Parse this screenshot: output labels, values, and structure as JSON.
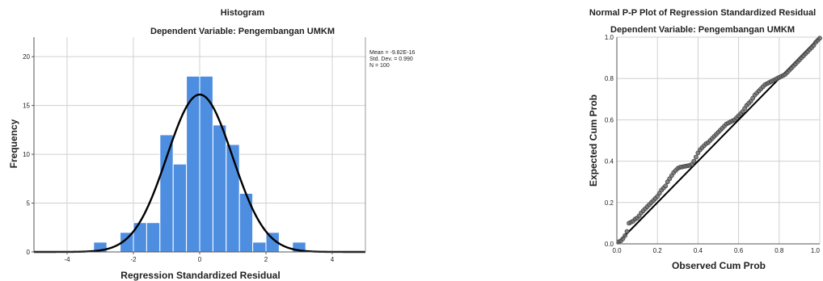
{
  "chart_data": [
    {
      "type": "histogram",
      "title": "Histogram",
      "subtitle": "Dependent Variable: Pengembangan UMKM",
      "xlabel": "Regression Standardized Residual",
      "ylabel": "Frequency",
      "xlim": [
        -5,
        5
      ],
      "ylim": [
        0,
        22
      ],
      "xticks": [
        -4,
        -2,
        0,
        2,
        4
      ],
      "yticks": [
        0,
        5,
        10,
        15,
        20
      ],
      "bin_width": 0.4,
      "bins": [
        {
          "start": -3.2,
          "count": 1
        },
        {
          "start": -2.4,
          "count": 2
        },
        {
          "start": -2.0,
          "count": 3
        },
        {
          "start": -1.6,
          "count": 3
        },
        {
          "start": -1.2,
          "count": 12
        },
        {
          "start": -0.8,
          "count": 9
        },
        {
          "start": -0.4,
          "count": 18
        },
        {
          "start": 0.0,
          "count": 18
        },
        {
          "start": 0.4,
          "count": 13
        },
        {
          "start": 0.8,
          "count": 11
        },
        {
          "start": 1.2,
          "count": 6
        },
        {
          "start": 1.6,
          "count": 1
        },
        {
          "start": 2.0,
          "count": 2
        },
        {
          "start": 2.8,
          "count": 1
        }
      ],
      "normal_curve": {
        "mean": 0,
        "sd": 0.99,
        "n": 100
      },
      "stats_lines": [
        "Mean = -9.82E-16",
        "Std. Dev. = 0.990",
        "N = 100"
      ],
      "grid": true,
      "colors": {
        "bar": "#4e8ee0",
        "bar_edge": "#ffffff",
        "curve": "#000000",
        "grid": "#d0d0d0"
      }
    },
    {
      "type": "scatter",
      "title": "Normal P-P Plot of Regression Standardized Residual",
      "subtitle": "Dependent Variable: Pengembangan UMKM",
      "xlabel": "Observed Cum Prob",
      "ylabel": "Expected Cum Prob",
      "xlim": [
        0,
        1
      ],
      "ylim": [
        0,
        1
      ],
      "xticks": [
        "0.0",
        "0.2",
        "0.4",
        "0.6",
        "0.8",
        "1.0"
      ],
      "yticks": [
        "0.0",
        "0.2",
        "0.4",
        "0.6",
        "0.8",
        "1.0"
      ],
      "reference_line": [
        [
          0,
          0
        ],
        [
          1,
          1
        ]
      ],
      "points": [
        [
          0.01,
          0.01
        ],
        [
          0.02,
          0.015
        ],
        [
          0.03,
          0.025
        ],
        [
          0.04,
          0.04
        ],
        [
          0.05,
          0.06
        ],
        [
          0.06,
          0.1
        ],
        [
          0.07,
          0.105
        ],
        [
          0.08,
          0.11
        ],
        [
          0.09,
          0.12
        ],
        [
          0.1,
          0.125
        ],
        [
          0.11,
          0.135
        ],
        [
          0.12,
          0.15
        ],
        [
          0.13,
          0.16
        ],
        [
          0.14,
          0.17
        ],
        [
          0.15,
          0.18
        ],
        [
          0.16,
          0.19
        ],
        [
          0.17,
          0.2
        ],
        [
          0.18,
          0.21
        ],
        [
          0.19,
          0.22
        ],
        [
          0.2,
          0.23
        ],
        [
          0.21,
          0.245
        ],
        [
          0.22,
          0.26
        ],
        [
          0.23,
          0.27
        ],
        [
          0.24,
          0.28
        ],
        [
          0.25,
          0.3
        ],
        [
          0.26,
          0.315
        ],
        [
          0.27,
          0.33
        ],
        [
          0.28,
          0.345
        ],
        [
          0.29,
          0.355
        ],
        [
          0.3,
          0.365
        ],
        [
          0.31,
          0.37
        ],
        [
          0.32,
          0.372
        ],
        [
          0.33,
          0.374
        ],
        [
          0.34,
          0.376
        ],
        [
          0.35,
          0.378
        ],
        [
          0.36,
          0.38
        ],
        [
          0.37,
          0.385
        ],
        [
          0.38,
          0.4
        ],
        [
          0.39,
          0.42
        ],
        [
          0.4,
          0.44
        ],
        [
          0.41,
          0.455
        ],
        [
          0.42,
          0.465
        ],
        [
          0.43,
          0.475
        ],
        [
          0.44,
          0.485
        ],
        [
          0.45,
          0.49
        ],
        [
          0.46,
          0.5
        ],
        [
          0.47,
          0.51
        ],
        [
          0.48,
          0.52
        ],
        [
          0.49,
          0.53
        ],
        [
          0.5,
          0.54
        ],
        [
          0.51,
          0.55
        ],
        [
          0.52,
          0.56
        ],
        [
          0.53,
          0.57
        ],
        [
          0.54,
          0.58
        ],
        [
          0.55,
          0.585
        ],
        [
          0.56,
          0.59
        ],
        [
          0.57,
          0.595
        ],
        [
          0.58,
          0.6
        ],
        [
          0.59,
          0.61
        ],
        [
          0.6,
          0.62
        ],
        [
          0.61,
          0.63
        ],
        [
          0.62,
          0.64
        ],
        [
          0.63,
          0.655
        ],
        [
          0.64,
          0.67
        ],
        [
          0.65,
          0.68
        ],
        [
          0.66,
          0.69
        ],
        [
          0.67,
          0.705
        ],
        [
          0.68,
          0.72
        ],
        [
          0.69,
          0.73
        ],
        [
          0.7,
          0.74
        ],
        [
          0.71,
          0.75
        ],
        [
          0.72,
          0.76
        ],
        [
          0.73,
          0.77
        ],
        [
          0.74,
          0.775
        ],
        [
          0.75,
          0.78
        ],
        [
          0.76,
          0.785
        ],
        [
          0.77,
          0.79
        ],
        [
          0.78,
          0.795
        ],
        [
          0.79,
          0.8
        ],
        [
          0.8,
          0.805
        ],
        [
          0.81,
          0.81
        ],
        [
          0.82,
          0.815
        ],
        [
          0.83,
          0.82
        ],
        [
          0.84,
          0.83
        ],
        [
          0.85,
          0.84
        ],
        [
          0.86,
          0.85
        ],
        [
          0.87,
          0.86
        ],
        [
          0.88,
          0.87
        ],
        [
          0.89,
          0.88
        ],
        [
          0.9,
          0.89
        ],
        [
          0.91,
          0.9
        ],
        [
          0.92,
          0.91
        ],
        [
          0.93,
          0.92
        ],
        [
          0.94,
          0.93
        ],
        [
          0.95,
          0.94
        ],
        [
          0.96,
          0.95
        ],
        [
          0.97,
          0.96
        ],
        [
          0.98,
          0.975
        ],
        [
          0.99,
          0.985
        ],
        [
          1.0,
          0.995
        ]
      ],
      "grid": true,
      "colors": {
        "point_fill": "#6e6e6e",
        "point_edge": "#333333",
        "line": "#000000",
        "grid": "#d0d0d0"
      }
    }
  ]
}
